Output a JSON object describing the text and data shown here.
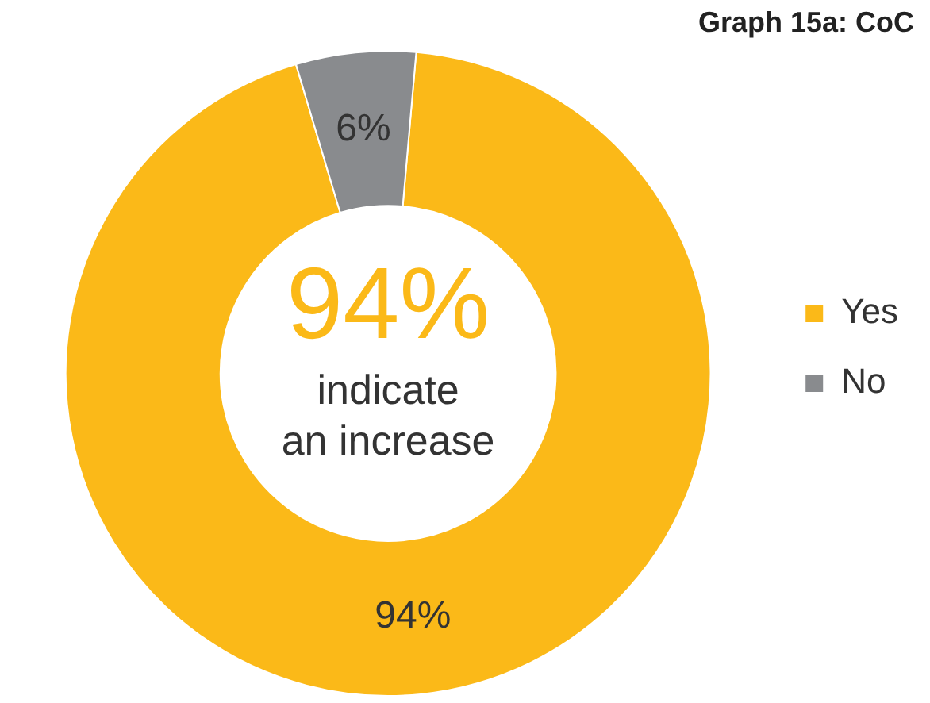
{
  "chart_data": {
    "type": "donut",
    "title": "Graph 15a: CoC",
    "categories": [
      "Yes",
      "No"
    ],
    "values": [
      94,
      6
    ],
    "colors": [
      "#fbb918",
      "#898b8e"
    ],
    "value_labels": [
      "94%",
      "6%"
    ],
    "annotations": [
      "94%",
      "indicate",
      "an increase"
    ],
    "legend": "right"
  }
}
